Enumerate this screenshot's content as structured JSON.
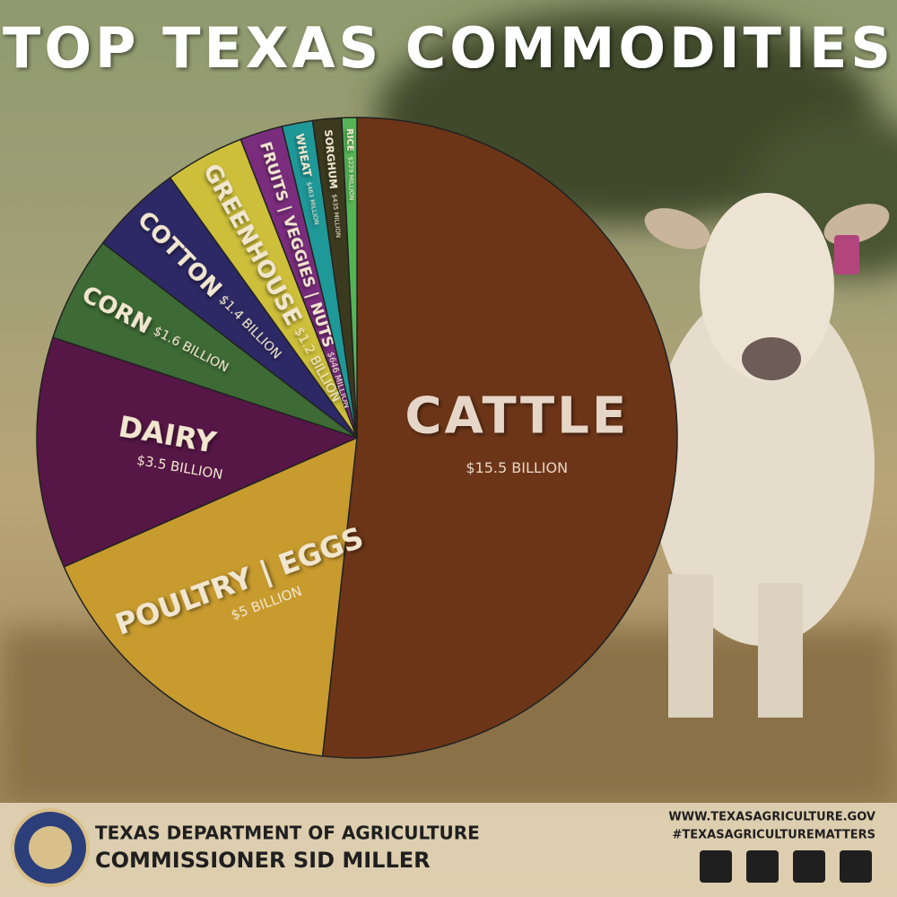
{
  "chart_data": {
    "type": "pie",
    "title": "TOP TEXAS COMMODITIES",
    "categories": [
      "CATTLE",
      "POULTRY | EGGS",
      "DAIRY",
      "CORN",
      "COTTON",
      "GREENHOUSE",
      "FRUITS | VEGGIES | NUTS",
      "WHEAT",
      "SORGHUM",
      "RICE"
    ],
    "values": [
      15.5,
      5,
      3.5,
      1.6,
      1.4,
      1.2,
      0.646,
      0.463,
      0.435,
      0.229
    ],
    "value_labels": [
      "$15.5 BILLION",
      "$5 BILLION",
      "$3.5 BILLION",
      "$1.6 BILLION",
      "$1.4 BILLION",
      "$1.2 BILLION",
      "$646 MILLION",
      "$463 MILLION",
      "$435 MILLION",
      "$229 MILLION"
    ],
    "colors": [
      "#6d3517",
      "#c89b2e",
      "#561646",
      "#3d6a35",
      "#2d2966",
      "#cdbf3a",
      "#7b2d7d",
      "#1f9898",
      "#3b3a1f",
      "#55b556"
    ]
  },
  "footer": {
    "agency": "TEXAS DEPARTMENT OF AGRICULTURE",
    "commissioner": "COMMISSIONER SID MILLER",
    "website": "WWW.TEXASAGRICULTURE.GOV",
    "hashtag": "#TEXASAGRICULTUREMATTERS"
  }
}
